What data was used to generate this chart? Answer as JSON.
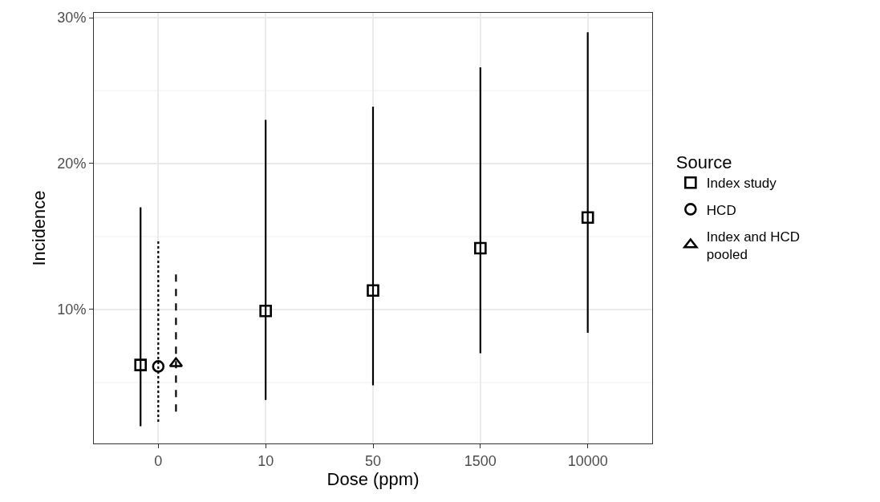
{
  "chart_data": {
    "type": "scatter",
    "xlabel": "Dose (ppm)",
    "ylabel": "Incidence",
    "legend_title": "Source",
    "categories": [
      "0",
      "10",
      "50",
      "1500",
      "10000"
    ],
    "ylim": [
      0.82,
      30.33
    ],
    "yticks": [
      {
        "value": 10,
        "label": "10%"
      },
      {
        "value": 20,
        "label": "20%"
      },
      {
        "value": 30,
        "label": "30%"
      }
    ],
    "grid": true,
    "legend": "right",
    "series": [
      {
        "name": "Index study",
        "color": "#000000",
        "marker": "square",
        "line_style": "solid",
        "values": [
          6.2,
          9.9,
          11.3,
          14.2,
          16.3
        ],
        "errors": [
          [
            2.0,
            17.0
          ],
          [
            3.8,
            23.0
          ],
          [
            4.8,
            23.9
          ],
          [
            7.0,
            26.6
          ],
          [
            8.4,
            29.0
          ]
        ]
      },
      {
        "name": "HCD",
        "color": "#000000",
        "marker": "circle",
        "line_style": "dotted",
        "x": [
          "0"
        ],
        "values": [
          6.1
        ],
        "errors": [
          [
            2.3,
            14.7
          ]
        ]
      },
      {
        "name": "Index and HCD pooled",
        "color": "#000000",
        "marker": "triangle",
        "line_style": "dashed",
        "x": [
          "0"
        ],
        "values": [
          6.3
        ],
        "errors": [
          [
            3.0,
            12.4
          ]
        ]
      }
    ]
  }
}
